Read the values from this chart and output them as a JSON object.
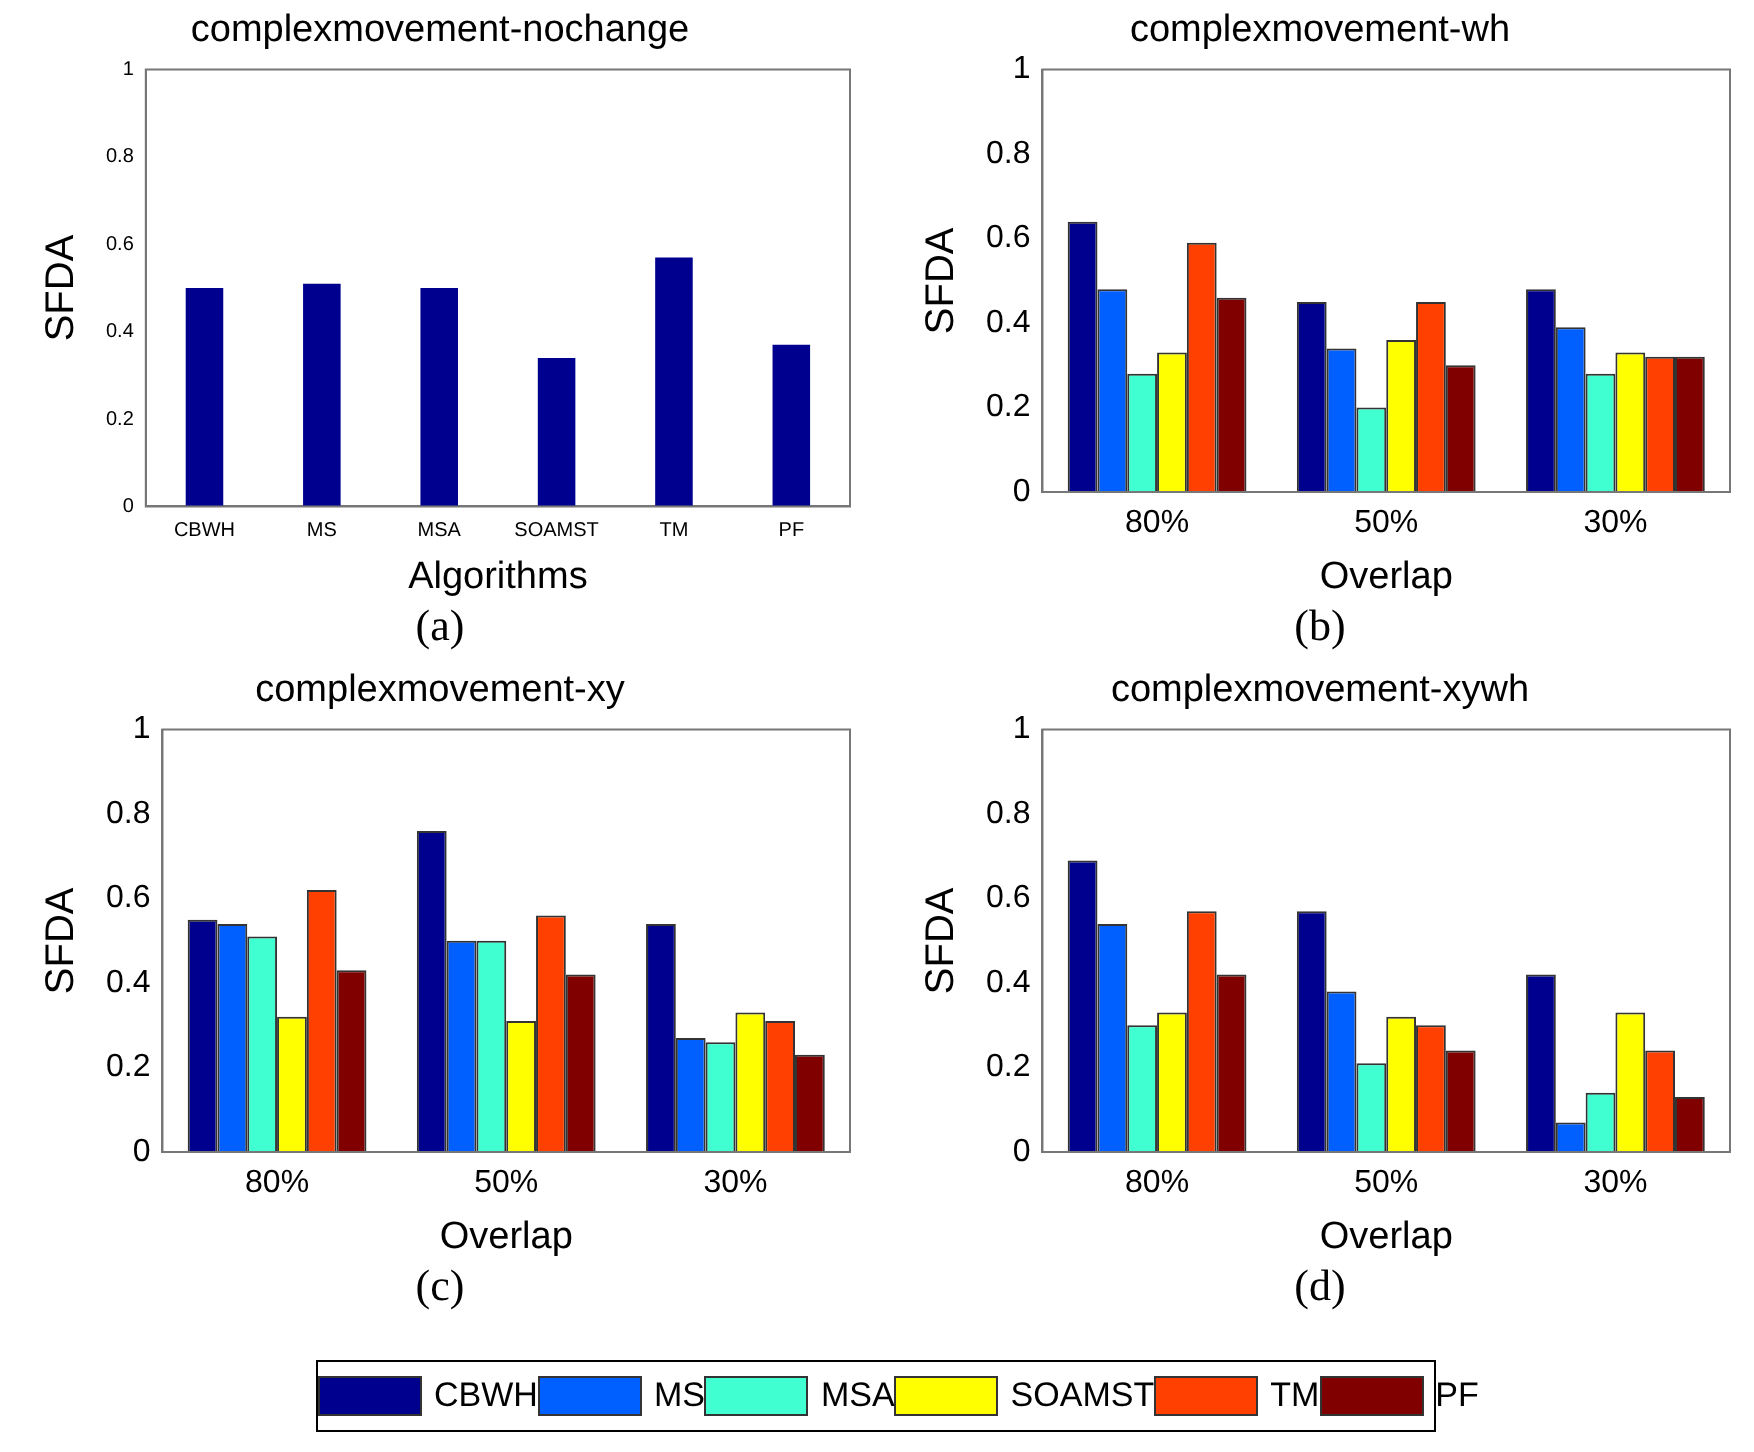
{
  "chart_data": [
    {
      "type": "bar",
      "title": "complexmovement-nochange",
      "xlabel": "Algorithms",
      "ylabel": "SFDA",
      "categories": [
        "CBWH",
        "MS",
        "MSA",
        "SOAMST",
        "TM",
        "PF"
      ],
      "values": [
        0.5,
        0.51,
        0.5,
        0.34,
        0.57,
        0.37
      ],
      "color": "#00008f",
      "ylim": [
        0,
        1
      ],
      "yticks": [
        0,
        0.2,
        0.4,
        0.6,
        0.8,
        1
      ],
      "annotations": [
        "(a)"
      ]
    },
    {
      "type": "bar",
      "title": "complexmovement-wh",
      "xlabel": "Overlap",
      "ylabel": "SFDA",
      "categories": [
        "80%",
        "50%",
        "30%"
      ],
      "series": [
        {
          "color": "#00008f",
          "values": [
            0.64,
            0.45,
            0.48
          ]
        },
        {
          "color": "#0060ff",
          "values": [
            0.48,
            0.34,
            0.39
          ]
        },
        {
          "color": "#40ffd0",
          "values": [
            0.28,
            0.2,
            0.28
          ]
        },
        {
          "color": "#ffff00",
          "values": [
            0.33,
            0.36,
            0.33
          ]
        },
        {
          "color": "#ff4000",
          "values": [
            0.59,
            0.45,
            0.32
          ]
        },
        {
          "color": "#800000",
          "values": [
            0.46,
            0.3,
            0.32
          ]
        }
      ],
      "ylim": [
        0,
        1
      ],
      "yticks": [
        0,
        0.2,
        0.4,
        0.6,
        0.8,
        1
      ],
      "annotations": [
        "(b)"
      ]
    },
    {
      "type": "bar",
      "title": "complexmovement-xy",
      "xlabel": "Overlap",
      "ylabel": "SFDA",
      "categories": [
        "80%",
        "50%",
        "30%"
      ],
      "series": [
        {
          "color": "#00008f",
          "values": [
            0.55,
            0.76,
            0.54
          ]
        },
        {
          "color": "#0060ff",
          "values": [
            0.54,
            0.5,
            0.27
          ]
        },
        {
          "color": "#40ffd0",
          "values": [
            0.51,
            0.5,
            0.26
          ]
        },
        {
          "color": "#ffff00",
          "values": [
            0.32,
            0.31,
            0.33
          ]
        },
        {
          "color": "#ff4000",
          "values": [
            0.62,
            0.56,
            0.31
          ]
        },
        {
          "color": "#800000",
          "values": [
            0.43,
            0.42,
            0.23
          ]
        }
      ],
      "ylim": [
        0,
        1
      ],
      "yticks": [
        0,
        0.2,
        0.4,
        0.6,
        0.8,
        1
      ],
      "annotations": [
        "(c)"
      ]
    },
    {
      "type": "bar",
      "title": "complexmovement-xywh",
      "xlabel": "Overlap",
      "ylabel": "SFDA",
      "categories": [
        "80%",
        "50%",
        "30%"
      ],
      "series": [
        {
          "name": "CBWH",
          "color": "#00008f",
          "values": [
            0.69,
            0.57,
            0.42
          ]
        },
        {
          "name": "MS",
          "color": "#0060ff",
          "values": [
            0.54,
            0.38,
            0.07
          ]
        },
        {
          "name": "MSA",
          "color": "#40ffd0",
          "values": [
            0.3,
            0.21,
            0.14
          ]
        },
        {
          "name": "SOAMST",
          "color": "#ffff00",
          "values": [
            0.33,
            0.32,
            0.33
          ]
        },
        {
          "name": "TM",
          "color": "#ff4000",
          "values": [
            0.57,
            0.3,
            0.24
          ]
        },
        {
          "name": "PF",
          "color": "#800000",
          "values": [
            0.42,
            0.24,
            0.13
          ]
        }
      ],
      "ylim": [
        0,
        1
      ],
      "yticks": [
        0,
        0.2,
        0.4,
        0.6,
        0.8,
        1
      ],
      "legend": "bottom",
      "annotations": [
        "(d)"
      ]
    }
  ]
}
